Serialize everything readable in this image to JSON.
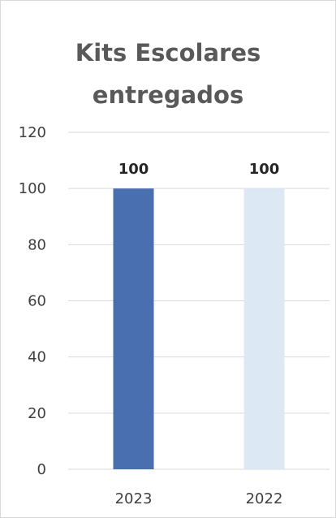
{
  "chart_data": {
    "type": "bar",
    "title": "Kits Escolares\nentregados",
    "categories": [
      "2023",
      "2022"
    ],
    "values": [
      100,
      100
    ],
    "data_labels": [
      "100",
      "100"
    ],
    "bar_colors": [
      "#4a6fb0",
      "#dde8f5"
    ],
    "ylim": [
      0,
      120
    ],
    "y_ticks": [
      "0",
      "20",
      "40",
      "60",
      "80",
      "100",
      "120"
    ],
    "grid": true,
    "legend": "none"
  }
}
